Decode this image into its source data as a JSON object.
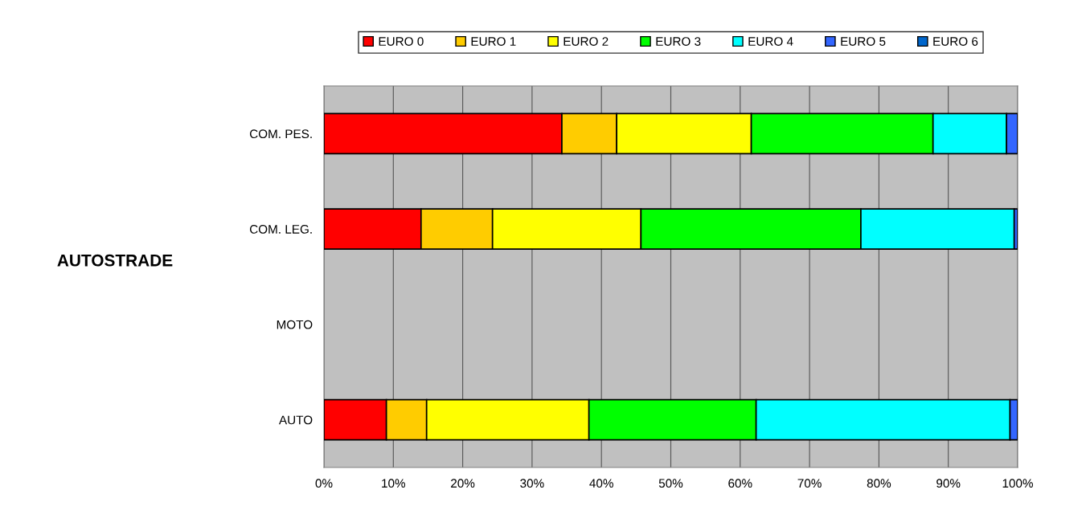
{
  "chart_data": {
    "type": "bar",
    "orientation": "horizontal",
    "stacked": true,
    "categories": [
      "COM. PES.",
      "COM. LEG.",
      "MOTO",
      "AUTO"
    ],
    "series": [
      {
        "name": "EURO 0",
        "color": "#ff0000",
        "values": [
          34.3,
          14.0,
          null,
          9.0
        ]
      },
      {
        "name": "EURO 1",
        "color": "#ffcc00",
        "values": [
          7.9,
          10.3,
          null,
          5.8
        ]
      },
      {
        "name": "EURO 2",
        "color": "#ffff00",
        "values": [
          19.4,
          21.4,
          null,
          23.4
        ]
      },
      {
        "name": "EURO 3",
        "color": "#00ff00",
        "values": [
          26.2,
          31.7,
          null,
          24.1
        ]
      },
      {
        "name": "EURO 4",
        "color": "#00ffff",
        "values": [
          10.6,
          22.1,
          null,
          36.6
        ]
      },
      {
        "name": "EURO 5",
        "color": "#3366ff",
        "values": [
          1.6,
          0.5,
          null,
          1.1
        ]
      },
      {
        "name": "EURO 6",
        "color": "#0066cc",
        "values": [
          null,
          null,
          null,
          null
        ]
      }
    ],
    "xlim": [
      0,
      100
    ],
    "xticks": [
      {
        "value": 0,
        "label": "0%"
      },
      {
        "value": 10,
        "label": "10%"
      },
      {
        "value": 20,
        "label": "20%"
      },
      {
        "value": 30,
        "label": "30%"
      },
      {
        "value": 40,
        "label": "40%"
      },
      {
        "value": 50,
        "label": "50%"
      },
      {
        "value": 60,
        "label": "60%"
      },
      {
        "value": 70,
        "label": "70%"
      },
      {
        "value": 80,
        "label": "80%"
      },
      {
        "value": 90,
        "label": "90%"
      },
      {
        "value": 100,
        "label": "100%"
      }
    ],
    "grid": "x",
    "legend": "top",
    "annotations": [
      "AUTOSTRADE"
    ]
  }
}
